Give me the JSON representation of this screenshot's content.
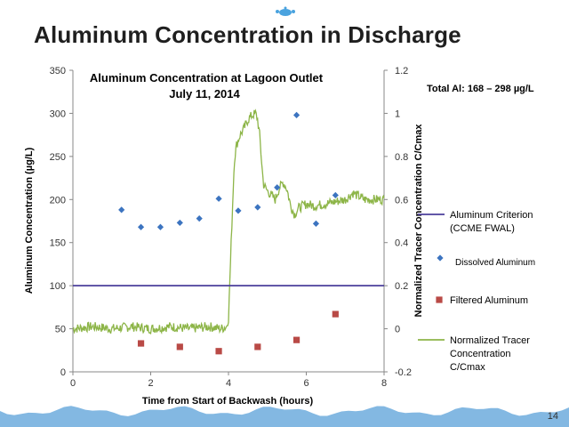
{
  "slide": {
    "title": "Aluminum Concentration in Discharge",
    "page_number": "14"
  },
  "colors": {
    "criterion": "#4b3f9b",
    "dissolved": "#3c74c0",
    "filtered": "#b94a46",
    "tracer": "#8db548",
    "wave": "#5aa0d8",
    "logo": "#4aa3df"
  },
  "chart_data": {
    "type": "scatter",
    "title_line1": "Aluminum Concentration at Lagoon Outlet",
    "title_line2": "July 11, 2014",
    "annotation": "Total Al: 168 – 298 µg/L",
    "xlabel": "Time from Start of Backwash  (hours)",
    "ylabel": "Aluminum Concentration  (µg/L)",
    "y2label": "Normalized Tracer Concentration C/Cmax",
    "xlim": [
      0,
      8
    ],
    "ylim": [
      0,
      350
    ],
    "y2lim": [
      -0.2,
      1.2
    ],
    "x_ticks": [
      "0",
      "2",
      "4",
      "6",
      "8"
    ],
    "y_ticks": [
      "0",
      "50",
      "100",
      "150",
      "200",
      "250",
      "300",
      "350"
    ],
    "y2_ticks": [
      "-0.2",
      "0",
      "0.2",
      "0.4",
      "0.6",
      "0.8",
      "1",
      "1.2"
    ],
    "grid": false,
    "legend_position": "right",
    "series": [
      {
        "name": "Aluminum Criterion (CCME FWAL)",
        "legend_lines": [
          "Aluminum Criterion",
          "(CCME FWAL)"
        ],
        "kind": "line",
        "axis": "left",
        "x": [
          0,
          8
        ],
        "y": [
          100,
          100
        ]
      },
      {
        "name": "Dissolved Aluminum",
        "legend_lines": [
          "Dissolved Aluminum"
        ],
        "kind": "marker-diamond",
        "axis": "left",
        "x": [
          1.25,
          1.75,
          2.25,
          2.75,
          3.25,
          3.75,
          4.25,
          4.75,
          5.25,
          5.75,
          6.25,
          6.75
        ],
        "y": [
          188,
          168,
          168,
          173,
          178,
          201,
          187,
          191,
          214,
          298,
          172,
          205
        ]
      },
      {
        "name": "Filtered Aluminum",
        "legend_lines": [
          "Filtered Aluminum"
        ],
        "kind": "marker-square",
        "axis": "left",
        "x": [
          1.75,
          2.75,
          3.75,
          4.75,
          5.75,
          6.75
        ],
        "y": [
          33,
          29,
          24,
          29,
          37,
          67
        ]
      },
      {
        "name": "Normalized Tracer Concentration C/Cmax",
        "legend_lines": [
          "Normalized Tracer",
          "Concentration",
          "C/Cmax"
        ],
        "kind": "line-noisy",
        "axis": "right",
        "x": [
          0,
          0.5,
          1.0,
          1.5,
          2.0,
          2.5,
          3.0,
          3.5,
          3.8,
          3.95,
          4.0,
          4.05,
          4.1,
          4.15,
          4.2,
          4.3,
          4.4,
          4.5,
          4.6,
          4.7,
          4.75,
          4.8,
          4.85,
          4.9,
          5.0,
          5.1,
          5.2,
          5.3,
          5.4,
          5.5,
          5.6,
          5.7,
          5.8,
          6.0,
          6.2,
          6.5,
          7.0,
          7.2,
          7.5,
          7.8,
          8.0
        ],
        "y": [
          0,
          0.01,
          0.0,
          0.01,
          0.0,
          0.01,
          0.0,
          0.01,
          0.0,
          0.01,
          0.05,
          0.3,
          0.55,
          0.78,
          0.85,
          0.9,
          0.93,
          0.97,
          0.99,
          1.0,
          0.97,
          0.9,
          0.78,
          0.67,
          0.64,
          0.62,
          0.6,
          0.65,
          0.68,
          0.65,
          0.57,
          0.53,
          0.56,
          0.58,
          0.57,
          0.58,
          0.6,
          0.63,
          0.6,
          0.6,
          0.6
        ]
      }
    ]
  }
}
